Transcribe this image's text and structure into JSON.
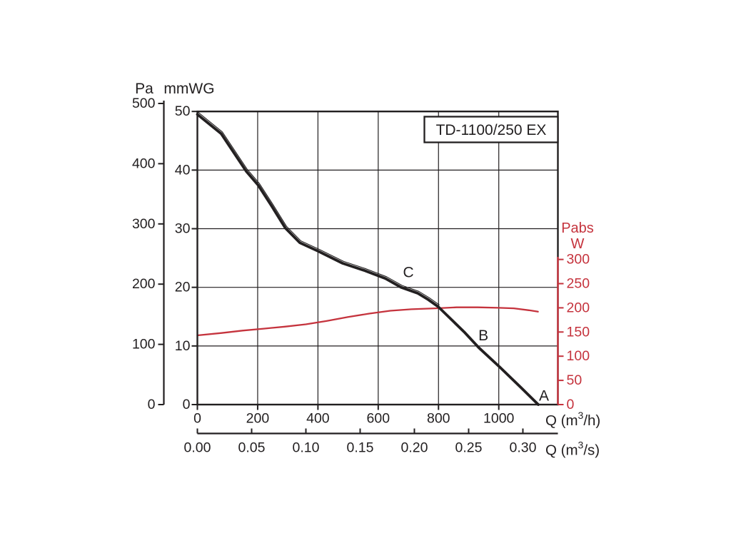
{
  "figure": {
    "background": "#ffffff",
    "ink_color": "#221f20",
    "accent_color": "#c5333d"
  },
  "chart_data": {
    "type": "line",
    "title": "TD-1100/250 EX",
    "grid": true,
    "legend": false,
    "x_axis_primary": {
      "label": "Q (m³/h)",
      "ticks": [
        0,
        200,
        400,
        600,
        800,
        1000
      ],
      "range": [
        0,
        1196
      ],
      "unit": "m³/h"
    },
    "x_axis_secondary": {
      "label": "Q (m³/s)",
      "ticks": [
        "0.00",
        "0.05",
        "0.10",
        "0.15",
        "0.20",
        "0.25",
        "0.30"
      ],
      "range": [
        0,
        0.332
      ],
      "unit": "m³/s"
    },
    "y_axis_pa": {
      "label": "Pa",
      "ticks": [
        0,
        100,
        200,
        300,
        400,
        500
      ],
      "range": [
        0,
        500
      ]
    },
    "y_axis_mmwg": {
      "label": "mmWG",
      "ticks": [
        0,
        10,
        20,
        30,
        40,
        50
      ],
      "range": [
        0,
        50
      ]
    },
    "y_axis_power": {
      "label": "Pabs",
      "unit": "W",
      "ticks": [
        0,
        50,
        100,
        150,
        200,
        250,
        300
      ],
      "range": [
        0,
        300
      ],
      "color": "#c5333d"
    },
    "series": [
      {
        "name": "pressure-curve",
        "color": "#221f20",
        "y_axis": "mmWG",
        "points": [
          [
            0,
            49.5
          ],
          [
            79,
            46.2
          ],
          [
            162,
            39.8
          ],
          [
            202,
            37.4
          ],
          [
            245,
            34.0
          ],
          [
            292,
            30.1
          ],
          [
            340,
            27.6
          ],
          [
            399,
            26.2
          ],
          [
            482,
            24.1
          ],
          [
            553,
            22.9
          ],
          [
            624,
            21.5
          ],
          [
            676,
            20.0
          ],
          [
            731,
            19.0
          ],
          [
            766,
            17.9
          ],
          [
            799,
            16.7
          ],
          [
            885,
            12.4
          ],
          [
            934,
            9.7
          ],
          [
            1003,
            6.4
          ],
          [
            1074,
            2.9
          ],
          [
            1131,
            0
          ]
        ]
      },
      {
        "name": "power-curve",
        "color": "#c5333d",
        "y_axis": "W",
        "points": [
          [
            0,
            143
          ],
          [
            80,
            148
          ],
          [
            150,
            153
          ],
          [
            220,
            157
          ],
          [
            290,
            161
          ],
          [
            360,
            166
          ],
          [
            430,
            173
          ],
          [
            500,
            181
          ],
          [
            570,
            188
          ],
          [
            640,
            194
          ],
          [
            710,
            197
          ],
          [
            790,
            199
          ],
          [
            860,
            201
          ],
          [
            930,
            201
          ],
          [
            1000,
            200
          ],
          [
            1050,
            199
          ],
          [
            1100,
            195
          ],
          [
            1130,
            192
          ]
        ]
      }
    ],
    "annotations": [
      {
        "label": "A",
        "q": 1150,
        "mmwg": 1.5
      },
      {
        "label": "B",
        "q": 949,
        "mmwg": 11.8
      },
      {
        "label": "C",
        "q": 700,
        "mmwg": 22.6
      }
    ]
  }
}
